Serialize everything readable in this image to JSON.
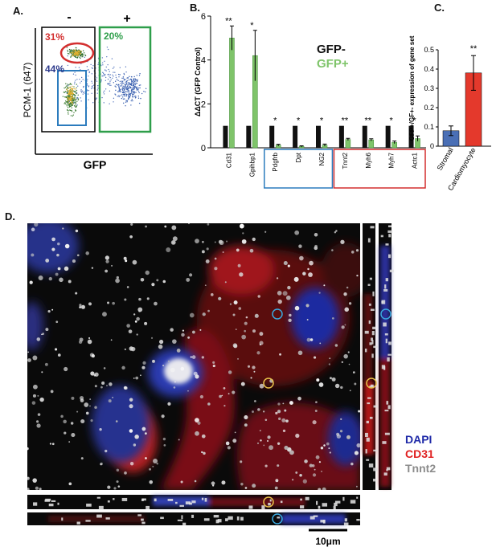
{
  "panel_labels": {
    "a": "A.",
    "b": "B.",
    "c": "C.",
    "d": "D."
  },
  "colors": {
    "gfp_neg": "#111111",
    "gfp_pos": "#7fc46a",
    "stromal_bar": "#4a6fb5",
    "cardio_bar": "#e4392c",
    "gate_red": "#d32f2f",
    "gate_green": "#2e9e4a",
    "gate_blue": "#2b7bbd",
    "dapi": "#1f2aa8",
    "cd31": "#e02020",
    "tnnt2": "#8c8c8c"
  },
  "panel_a": {
    "minus_label": "-",
    "plus_label": "+",
    "gate_red_pct": "31%",
    "gate_green_pct": "20%",
    "gate_blue_pct": "44%",
    "y_label": "PCM-1 (647)",
    "x_label": "GFP"
  },
  "chart_data": [
    {
      "type": "bar",
      "panel": "B",
      "ylabel": "ΔΔCT (GFP Control)",
      "ylim": [
        0,
        6
      ],
      "yticks": [
        "0",
        "2",
        "4",
        "6"
      ],
      "categories": [
        "Cd31",
        "Gpihbp1",
        "Pdgfrb",
        "Dpt",
        "NG2",
        "Tnnt2",
        "Myh6",
        "Myh7",
        "Actc1"
      ],
      "significance": [
        "**",
        "*",
        "*",
        "*",
        "*",
        "**",
        "**",
        "*",
        "*"
      ],
      "series": [
        {
          "name": "GFP-",
          "values": [
            1,
            1,
            1,
            1,
            1,
            1,
            1,
            1,
            1
          ],
          "errors": [
            0,
            0,
            0,
            0,
            0,
            0,
            0,
            0,
            0
          ]
        },
        {
          "name": "GFP+",
          "values": [
            5.0,
            4.2,
            0.12,
            0.06,
            0.12,
            0.38,
            0.36,
            0.25,
            0.42
          ],
          "errors": [
            0.55,
            1.15,
            0.04,
            0.03,
            0.05,
            0.05,
            0.05,
            0.06,
            0.12
          ]
        }
      ],
      "legend": [
        "GFP-",
        "GFP+"
      ],
      "legend_placement": "top-right",
      "groups": [
        {
          "members": [
            "Pdgfrb",
            "Dpt",
            "NG2"
          ],
          "color": "blue"
        },
        {
          "members": [
            "Tnnt2",
            "Myh6",
            "Myh7",
            "Actc1"
          ],
          "color": "red"
        }
      ]
    },
    {
      "type": "bar",
      "panel": "C",
      "ylabel": "GFP+/GF+- expression of gene set",
      "ylim": [
        0,
        0.5
      ],
      "yticks": [
        "0",
        "0.1",
        "0.2",
        "0.3",
        "0.4",
        "0.5"
      ],
      "categories": [
        "Stromal",
        "Cardiomyocyte"
      ],
      "values": [
        0.08,
        0.38
      ],
      "errors": [
        0.025,
        0.09
      ],
      "significance": [
        "",
        "**"
      ]
    }
  ],
  "panel_d": {
    "legend": [
      "DAPI",
      "CD31",
      "Tnnt2"
    ],
    "scale_bar_label": "10μm"
  }
}
